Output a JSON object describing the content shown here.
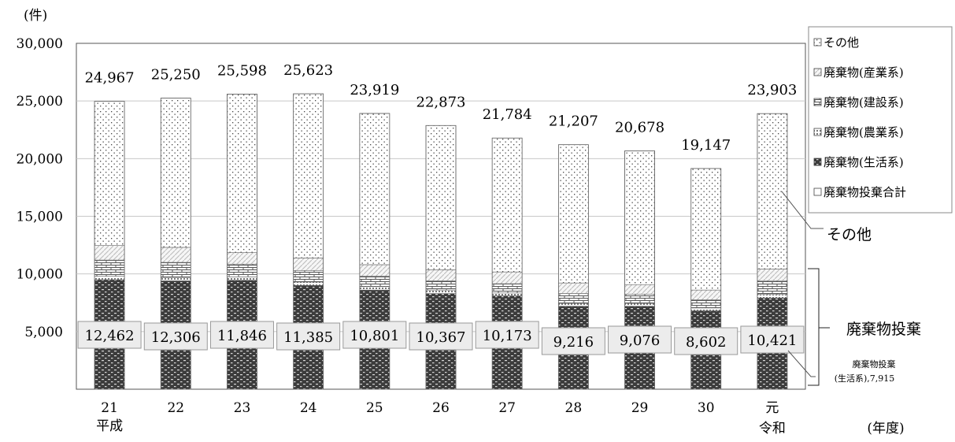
{
  "chart_data": {
    "type": "bar",
    "stacked": true,
    "y_unit": "(件)",
    "x_unit": "(年度)",
    "era_labels": [
      "平成",
      "令和"
    ],
    "categories": [
      "21",
      "22",
      "23",
      "24",
      "25",
      "26",
      "27",
      "28",
      "29",
      "30",
      "元"
    ],
    "ylim": [
      0,
      30000
    ],
    "yticks": [
      "30,000",
      "25,000",
      "20,000",
      "15,000",
      "10,000",
      "5,000"
    ],
    "grid": true,
    "legend_position": "top-right",
    "legend": [
      "その他",
      "廃棄物(産業系)",
      "廃棄物(建設系)",
      "廃棄物(農業系)",
      "廃棄物(生活系)",
      "廃棄物投棄合計"
    ],
    "series": [
      {
        "name": "廃棄物(生活系)",
        "values": [
          9500,
          9400,
          9450,
          9000,
          8600,
          8300,
          8100,
          7200,
          7200,
          6800,
          7915
        ]
      },
      {
        "name": "廃棄物(農業系)",
        "values": [
          300,
          300,
          300,
          300,
          300,
          300,
          250,
          250,
          250,
          250,
          300
        ]
      },
      {
        "name": "廃棄物(建設系)",
        "values": [
          1400,
          1300,
          1100,
          1000,
          900,
          800,
          800,
          850,
          800,
          700,
          1200
        ]
      },
      {
        "name": "廃棄物(産業系)",
        "values": [
          1262,
          1306,
          996,
          1085,
          1001,
          967,
          1023,
          916,
          826,
          852,
          1006
        ]
      },
      {
        "name": "その他",
        "values": [
          12505,
          12944,
          13752,
          14238,
          13118,
          12506,
          11611,
          11991,
          11602,
          10545,
          13482
        ]
      }
    ],
    "totals": [
      24967,
      25250,
      25598,
      25623,
      23919,
      22873,
      21784,
      21207,
      20678,
      19147,
      23903
    ],
    "totals_labels": [
      "24,967",
      "25,250",
      "25,598",
      "25,623",
      "23,919",
      "22,873",
      "21,784",
      "21,207",
      "20,678",
      "19,147",
      "23,903"
    ],
    "waste_total_labels": [
      "12,462",
      "12,306",
      "11,846",
      "11,385",
      "10,801",
      "10,367",
      "10,173",
      "9,216",
      "9,076",
      "8,602",
      "10,421"
    ],
    "annotations": {
      "other": "その他",
      "waste": "廃棄物投棄",
      "household_line1": "廃棄物投棄",
      "household_line2": "(生活系),7,915"
    }
  }
}
